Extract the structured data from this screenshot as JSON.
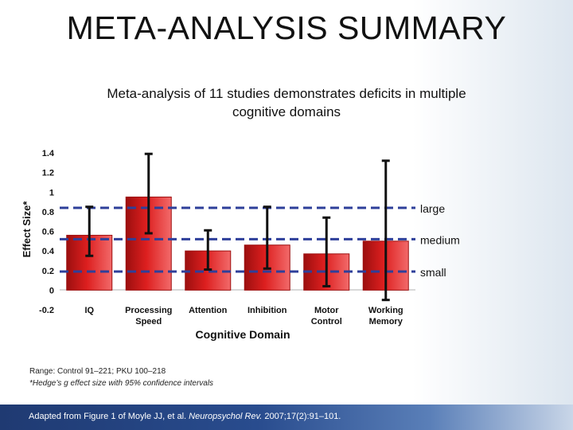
{
  "slide": {
    "title": "META-ANALYSIS SUMMARY",
    "subtitle": "Meta-analysis of 11 studies demonstrates deficits in multiple cognitive domains",
    "note_range": "Range: Control 91–221; PKU 100–218",
    "note_effect": "*Hedge’s g effect size with 95% confidence intervals",
    "footer_pre": "Adapted from Figure 1 of Moyle JJ, et al. ",
    "footer_journal": "Neuropsychol Rev.",
    "footer_post": " 2007;17(2):91–101."
  },
  "chart_data": {
    "type": "bar",
    "xlabel": "Cognitive Domain",
    "ylabel": "Effect Size*",
    "ylim": [
      -0.2,
      1.4
    ],
    "yticks": [
      -0.2,
      0,
      0.2,
      0.4,
      0.6,
      0.8,
      1,
      1.2,
      1.4
    ],
    "ytick_labels": [
      "-0.2",
      "0",
      "0.2",
      "0.4",
      "0.6",
      "0.8",
      "1",
      "1.2",
      "1.4"
    ],
    "categories": [
      [
        "IQ"
      ],
      [
        "Processing",
        "Speed"
      ],
      [
        "Attention"
      ],
      [
        "Inhibition"
      ],
      [
        "Motor",
        "Control"
      ],
      [
        "Working",
        "Memory"
      ]
    ],
    "values": [
      0.56,
      0.95,
      0.4,
      0.46,
      0.37,
      0.5
    ],
    "ci_low": [
      0.35,
      0.58,
      0.21,
      0.22,
      0.04,
      -0.1
    ],
    "ci_high": [
      0.85,
      1.39,
      0.61,
      0.85,
      0.74,
      1.32
    ],
    "reference_lines": [
      {
        "label": "large",
        "value": 0.84
      },
      {
        "label": "medium",
        "value": 0.52
      },
      {
        "label": "small",
        "value": 0.19
      }
    ],
    "colors": {
      "bar": "#dd1f1f",
      "bar_dark": "#9c0f0f",
      "bar_light": "#f26a6a",
      "error": "#111111",
      "reference": "#2e3f9a"
    },
    "grid": false
  }
}
